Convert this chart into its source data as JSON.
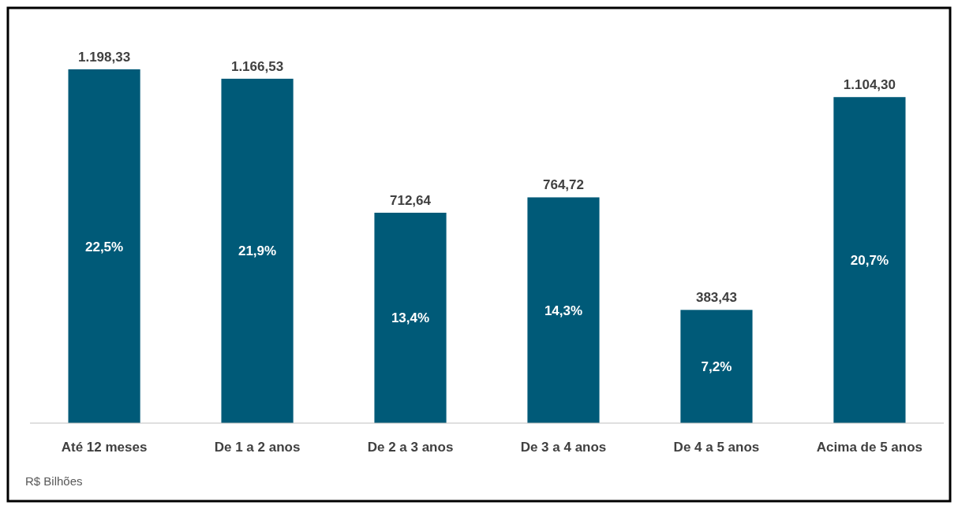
{
  "chart_data": {
    "type": "bar",
    "categories": [
      "Até 12 meses",
      "De 1 a 2 anos",
      "De 2 a 3 anos",
      "De 3 a 4 anos",
      "De 4 a 5 anos",
      "Acima de 5 anos"
    ],
    "values": [
      1198.33,
      1166.53,
      712.64,
      764.72,
      383.43,
      1104.3
    ],
    "value_labels": [
      "1.198,33",
      "1.166,53",
      "712,64",
      "764,72",
      "383,43",
      "1.104,30"
    ],
    "color": "#005a78",
    "annotations": [
      "22,5%",
      "21,9%",
      "13,4%",
      "14,3%",
      "7,2%",
      "20,7%",
      "R$ Bilhões"
    ]
  }
}
